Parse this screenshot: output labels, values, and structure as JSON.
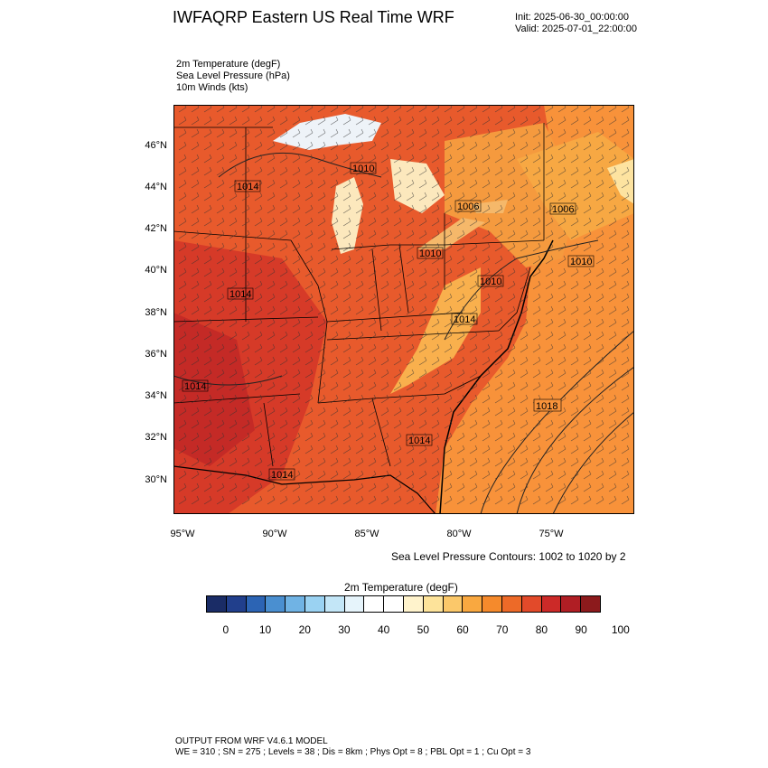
{
  "title": "IWFAQRP Eastern US Real Time WRF",
  "init_line": "Init: 2025-06-30_00:00:00",
  "valid_line": "Valid: 2025-07-01_22:00:00",
  "fields": [
    "2m Temperature   (degF)",
    "Sea Level Pressure   (hPa)",
    "10m Winds   (kts)"
  ],
  "lat_labels": [
    "46°N",
    "44°N",
    "42°N",
    "40°N",
    "38°N",
    "36°N",
    "34°N",
    "32°N",
    "30°N"
  ],
  "lon_labels": [
    "95°W",
    "90°W",
    "85°W",
    "80°W",
    "75°W"
  ],
  "contour_labels": [
    "1014",
    "1010",
    "1006",
    "1006",
    "1010",
    "1010",
    "1010",
    "1014",
    "1014",
    "1014",
    "1018",
    "1014",
    "1014"
  ],
  "contour_note": "Sea Level Pressure Contours: 1002 to 1020 by 2",
  "colorbar": {
    "title": "2m Temperature  (degF)",
    "ticks": [
      "0",
      "10",
      "20",
      "30",
      "40",
      "50",
      "60",
      "70",
      "80",
      "90",
      "100"
    ],
    "colors": [
      "#1a2c66",
      "#213f8c",
      "#2c64b4",
      "#4a8fd0",
      "#70b3e4",
      "#9ad2f2",
      "#c3e6f7",
      "#e6f4fb",
      "#ffffff",
      "#ffffff",
      "#fff3cc",
      "#fde39a",
      "#fbc86a",
      "#f9a840",
      "#f58a2c",
      "#ed6a28",
      "#e24a2a",
      "#cc2a28",
      "#b01e24",
      "#8c1a1c"
    ]
  },
  "footer_line1": "OUTPUT FROM WRF V4.6.1 MODEL",
  "footer_line2": "WE = 310 ; SN = 275 ; Levels = 38 ; Dis = 8km ; Phys Opt = 8 ; PBL Opt = 1 ; Cu Opt = 3"
}
